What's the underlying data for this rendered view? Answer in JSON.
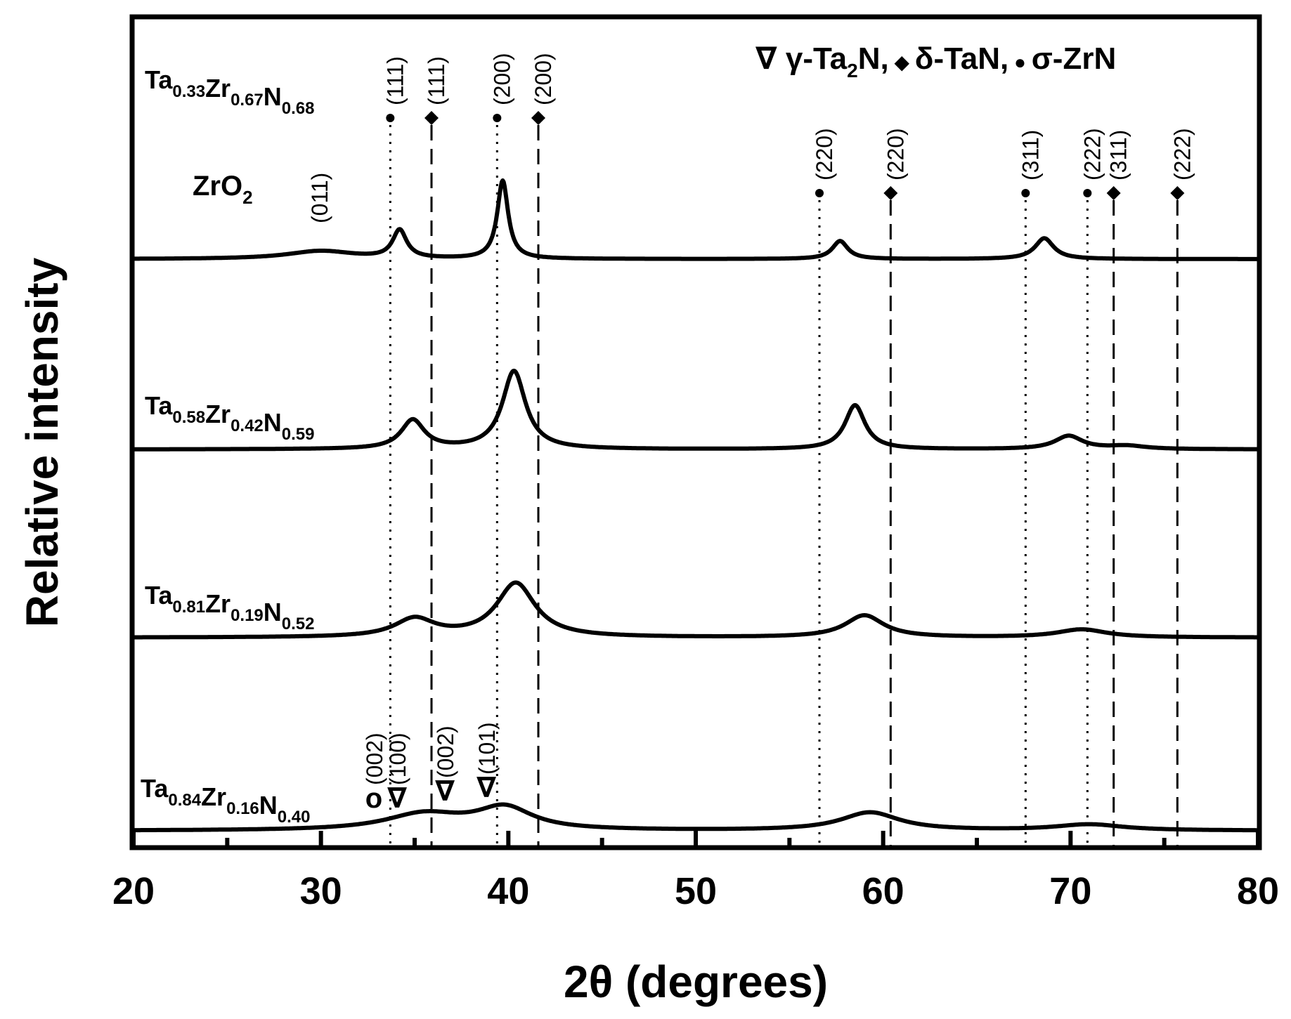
{
  "chart_data": {
    "type": "line",
    "title": "",
    "xlabel": "2θ (degrees)",
    "ylabel": "Relative intensity",
    "xlim": [
      20,
      80
    ],
    "xticks": [
      20,
      30,
      40,
      50,
      60,
      70,
      80
    ],
    "grid": false,
    "legend": {
      "position": "top-right",
      "entries": [
        {
          "symbol": "∇",
          "text": "γ-Ta",
          "sub": "2",
          "text2": "N,"
        },
        {
          "symbol": "◆",
          "text": "δ-TaN,",
          "sub": "",
          "text2": ""
        },
        {
          "symbol": "●",
          "text": "σ-ZrN",
          "sub": "",
          "text2": ""
        }
      ]
    },
    "series": [
      {
        "name": "Ta0.33Zr0.67N0.68",
        "label_parts": [
          {
            "t": "Ta",
            "s": "0.33"
          },
          {
            "t": "Zr",
            "s": "0.67"
          },
          {
            "t": "N",
            "s": "0.68"
          }
        ],
        "baseline": 0.0,
        "peaks": [
          {
            "center": 30.0,
            "height": 0.2,
            "width": 2.2
          },
          {
            "center": 34.2,
            "height": 0.7,
            "width": 0.45
          },
          {
            "center": 39.7,
            "height": 1.95,
            "width": 0.35
          },
          {
            "center": 57.7,
            "height": 0.45,
            "width": 0.5
          },
          {
            "center": 68.6,
            "height": 0.52,
            "width": 0.6
          }
        ]
      },
      {
        "name": "Ta0.58Zr0.42N0.59",
        "label_parts": [
          {
            "t": "Ta",
            "s": "0.58"
          },
          {
            "t": "Zr",
            "s": "0.42"
          },
          {
            "t": "N",
            "s": "0.59"
          }
        ],
        "baseline": 0.0,
        "peaks": [
          {
            "center": 34.9,
            "height": 0.72,
            "width": 0.75
          },
          {
            "center": 40.3,
            "height": 1.95,
            "width": 0.75
          },
          {
            "center": 58.5,
            "height": 1.1,
            "width": 0.65
          },
          {
            "center": 69.9,
            "height": 0.33,
            "width": 0.9
          },
          {
            "center": 73.0,
            "height": 0.08,
            "width": 1.2
          }
        ]
      },
      {
        "name": "Ta0.81Zr0.19N0.52",
        "label_parts": [
          {
            "t": "Ta",
            "s": "0.81"
          },
          {
            "t": "Zr",
            "s": "0.19"
          },
          {
            "t": "N",
            "s": "0.52"
          }
        ],
        "baseline": 0.0,
        "peaks": [
          {
            "center": 35.0,
            "height": 0.45,
            "width": 1.3
          },
          {
            "center": 40.4,
            "height": 1.35,
            "width": 1.25
          },
          {
            "center": 59.0,
            "height": 0.55,
            "width": 1.25
          },
          {
            "center": 70.6,
            "height": 0.2,
            "width": 1.6
          }
        ]
      },
      {
        "name": "Ta0.84Zr0.16N0.40",
        "label_parts": [
          {
            "t": "Ta",
            "s": "0.84"
          },
          {
            "t": "Zr",
            "s": "0.16"
          },
          {
            "t": "N",
            "s": "0.40"
          }
        ],
        "baseline": 0.0,
        "peaks": [
          {
            "center": 35.5,
            "height": 0.4,
            "width": 2.5
          },
          {
            "center": 39.8,
            "height": 0.55,
            "width": 1.8
          },
          {
            "center": 59.3,
            "height": 0.45,
            "width": 1.9
          },
          {
            "center": 71.0,
            "height": 0.15,
            "width": 2.2
          }
        ]
      }
    ],
    "reference_lines": [
      {
        "x": 33.7,
        "phase": "σ-ZrN",
        "hkl": "(111)",
        "style": "dotted"
      },
      {
        "x": 35.9,
        "phase": "δ-TaN",
        "hkl": "(111)",
        "style": "dashed"
      },
      {
        "x": 39.4,
        "phase": "σ-ZrN",
        "hkl": "(200)",
        "style": "dotted"
      },
      {
        "x": 41.6,
        "phase": "δ-TaN",
        "hkl": "(200)",
        "style": "dashed"
      },
      {
        "x": 56.6,
        "phase": "σ-ZrN",
        "hkl": "(220)",
        "style": "dotted"
      },
      {
        "x": 60.4,
        "phase": "δ-TaN",
        "hkl": "(220)",
        "style": "dashed"
      },
      {
        "x": 67.6,
        "phase": "σ-ZrN",
        "hkl": "(311)",
        "style": "dotted"
      },
      {
        "x": 70.9,
        "phase": "σ-ZrN",
        "hkl": "(222)",
        "style": "dotted"
      },
      {
        "x": 72.3,
        "phase": "δ-TaN",
        "hkl": "(311)",
        "style": "dashed"
      },
      {
        "x": 75.7,
        "phase": "δ-TaN",
        "hkl": "(222)",
        "style": "dashed"
      }
    ],
    "annotations": {
      "zro2": {
        "text": "ZrO",
        "sub": "2",
        "hkl": "(011)"
      },
      "ta2n_marks": [
        {
          "symbol": "o",
          "hkl": "(002)"
        },
        {
          "symbol": "∇",
          "hkl": "(100)"
        },
        {
          "symbol": "∇",
          "hkl": "(002)"
        },
        {
          "symbol": "∇",
          "hkl": "(101)"
        }
      ]
    }
  }
}
